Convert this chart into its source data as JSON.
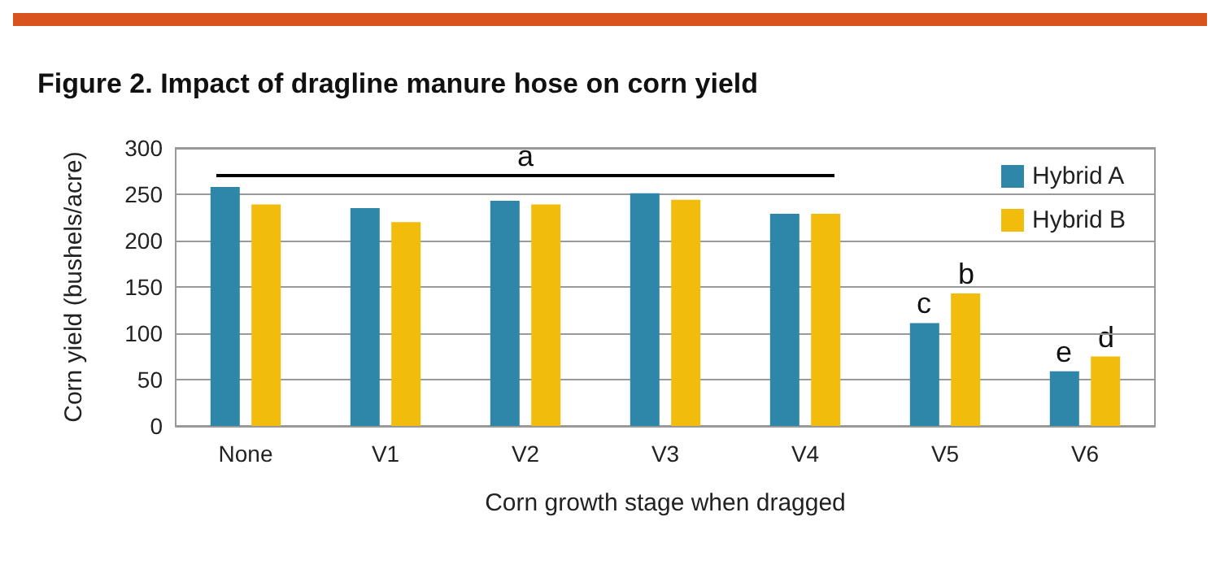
{
  "chart_data": {
    "type": "bar",
    "title": "Figure 2. Impact of dragline manure hose on corn yield",
    "xlabel": "Corn growth stage when dragged",
    "ylabel": "Corn yield (bushels/acre)",
    "categories": [
      "None",
      "V1",
      "V2",
      "V3",
      "V4",
      "V5",
      "V6"
    ],
    "series": [
      {
        "name": "Hybrid A",
        "color": "#2e86a8",
        "values": [
          258,
          235,
          243,
          251,
          229,
          111,
          59
        ]
      },
      {
        "name": "Hybrid B",
        "color": "#f2bc0c",
        "values": [
          239,
          220,
          239,
          244,
          229,
          143,
          75
        ]
      }
    ],
    "ylim": [
      0,
      300
    ],
    "yticks": [
      0,
      50,
      100,
      150,
      200,
      250,
      300
    ],
    "grid": "y",
    "legend": "top right",
    "annotations": [
      "a",
      {
        "text": "c",
        "x": "V5",
        "y": 111
      },
      {
        "text": "b",
        "x": "V5",
        "y": 143
      },
      {
        "text": "e",
        "x": "V6",
        "y": 59
      },
      {
        "text": "d",
        "x": "V6",
        "y": 75
      }
    ]
  }
}
